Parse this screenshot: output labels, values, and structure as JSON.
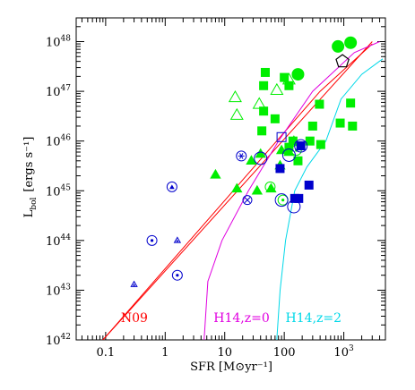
{
  "chart_data": {
    "type": "scatter",
    "xlabel": "SFR [M⊙yr⁻¹]",
    "ylabel_main": "L",
    "ylabel_sub": "bol",
    "ylabel_units": "[ergs s⁻¹]",
    "x_scale": "log",
    "y_scale": "log",
    "xlim": [
      0.032,
      5000
    ],
    "ylim": [
      1e+42,
      3e+48
    ],
    "x_ticks": [
      {
        "v": 0.1,
        "label": "0.1"
      },
      {
        "v": 1,
        "label": "1"
      },
      {
        "v": 10,
        "label": "10"
      },
      {
        "v": 100,
        "label": "100"
      },
      {
        "v": 1000,
        "label": "10",
        "sup": "3"
      }
    ],
    "y_ticks": [
      {
        "v": 1e+42,
        "base": "10",
        "sup": "42"
      },
      {
        "v": 1e+43,
        "base": "10",
        "sup": "43"
      },
      {
        "v": 1e+44,
        "base": "10",
        "sup": "44"
      },
      {
        "v": 1e+45,
        "base": "10",
        "sup": "45"
      },
      {
        "v": 1e+46,
        "base": "10",
        "sup": "46"
      },
      {
        "v": 1e+47,
        "base": "10",
        "sup": "47"
      },
      {
        "v": 1e+48,
        "base": "10",
        "sup": "48"
      }
    ],
    "lines": [
      {
        "label": "N09",
        "color": "#ff0000",
        "points": [
          [
            0.09,
            1e+42
          ],
          [
            400,
            1e+47
          ],
          [
            3000,
            9e+47
          ]
        ]
      },
      {
        "label": "",
        "color": "#ff0000",
        "points": [
          [
            0.09,
            1e+42
          ],
          [
            3000,
            1e+48
          ]
        ]
      },
      {
        "label": "H14,z=0",
        "color": "#e000e0",
        "points": [
          [
            4.5,
            1e+42
          ],
          [
            5.2,
            1.5e+43
          ],
          [
            9,
            1e+44
          ],
          [
            25,
            1e+45
          ],
          [
            80,
            1e+46
          ],
          [
            300,
            1e+47
          ],
          [
            1500,
            6e+47
          ],
          [
            4000,
            1e+48
          ]
        ]
      },
      {
        "label": "H14,z=2",
        "color": "#00d8e8",
        "points": [
          [
            75,
            1e+42
          ],
          [
            85,
            1e+43
          ],
          [
            105,
            1e+44
          ],
          [
            150,
            1e+45
          ],
          [
            240,
            3e+45
          ],
          [
            500,
            1e+46
          ],
          [
            900,
            7e+46
          ],
          [
            2000,
            2.2e+47
          ],
          [
            4500,
            4.5e+47
          ]
        ]
      }
    ],
    "annotations": [
      {
        "text": "N09",
        "color": "#ff0000",
        "x": 0.18,
        "y": 2.3e+42
      },
      {
        "text": "H14,z=0",
        "color": "#e000e0",
        "x": 6.5,
        "y": 2.3e+42
      },
      {
        "text": "H14,z=2",
        "color": "#00d8e8",
        "x": 105,
        "y": 2.3e+42
      }
    ],
    "series": [
      {
        "marker": "filled-circle",
        "color": "#00ee00",
        "points": [
          [
            170,
            2.2e+47
          ],
          [
            800,
            8e+47
          ],
          [
            1300,
            9.5e+47
          ]
        ]
      },
      {
        "marker": "filled-square",
        "color": "#00ee00",
        "points": [
          [
            48,
            2.4e+47
          ],
          [
            100,
            1.9e+47
          ],
          [
            120,
            1.3e+47
          ],
          [
            45,
            1.3e+47
          ],
          [
            45,
            4e+46
          ],
          [
            70,
            2.8e+46
          ],
          [
            390,
            5.5e+46
          ],
          [
            300,
            2e+46
          ],
          [
            270,
            1e+46
          ],
          [
            140,
            1e+46
          ],
          [
            42,
            1.6e+46
          ],
          [
            120,
            7.5e+45
          ],
          [
            170,
            4e+45
          ],
          [
            410,
            8.5e+45
          ],
          [
            870,
            2.3e+46
          ],
          [
            1300,
            5.8e+46
          ],
          [
            1400,
            2e+46
          ]
        ]
      },
      {
        "marker": "filled-triangle",
        "color": "#00ee00",
        "points": [
          [
            7,
            2.1e+45
          ],
          [
            16,
            1.1e+45
          ],
          [
            28,
            4e+45
          ],
          [
            35,
            1e+45
          ],
          [
            40,
            5.5e+45
          ],
          [
            60,
            1.1e+45
          ],
          [
            85,
            3.2e+45
          ],
          [
            90,
            6.5e+45
          ],
          [
            120,
            6e+45
          ],
          [
            145,
            1e+46
          ]
        ]
      },
      {
        "marker": "open-triangle",
        "color": "#00ee00",
        "points": [
          [
            15,
            7.5e+46
          ],
          [
            16,
            3.3e+46
          ],
          [
            38,
            5.5e+46
          ],
          [
            75,
            1.05e+47
          ],
          [
            120,
            1.7e+47
          ]
        ]
      },
      {
        "marker": "open-circle-dot",
        "color": "#00ee00",
        "points": [
          [
            58,
            1.2e+45
          ],
          [
            95,
            6.5e+44
          ],
          [
            160,
            6.5e+45
          ]
        ]
      },
      {
        "marker": "filled-square",
        "color": "#0000cc",
        "points": [
          [
            85,
            2.8e+45
          ],
          [
            150,
            7e+44
          ],
          [
            175,
            7e+44
          ],
          [
            260,
            1.3e+45
          ],
          [
            190,
            8e+45
          ]
        ]
      },
      {
        "marker": "open-square",
        "color": "#0000cc",
        "points": [
          [
            90,
            1.2e+46
          ]
        ]
      },
      {
        "marker": "open-circle",
        "color": "#0000cc",
        "points": [
          [
            40,
            4.5e+45
          ],
          [
            90,
            6.5e+44
          ],
          [
            145,
            4.8e+44
          ],
          [
            120,
            5.2e+45
          ],
          [
            190,
            8e+45
          ]
        ]
      },
      {
        "marker": "open-circle-triangle",
        "color": "#0000cc",
        "points": [
          [
            1.3,
            1.2e+45
          ]
        ]
      },
      {
        "marker": "open-circle-dot",
        "color": "#0000cc",
        "points": [
          [
            0.6,
            1e+44
          ],
          [
            1.6,
            2e+43
          ]
        ]
      },
      {
        "marker": "open-circle-star",
        "color": "#0000cc",
        "points": [
          [
            19,
            5e+45
          ]
        ]
      },
      {
        "marker": "open-circle-cross",
        "color": "#0000cc",
        "points": [
          [
            24,
            6.5e+44
          ]
        ]
      },
      {
        "marker": "small-triangle",
        "color": "#0000cc",
        "points": [
          [
            0.3,
            1.3e+43
          ],
          [
            1.6,
            1e+44
          ]
        ]
      },
      {
        "marker": "open-pentagon",
        "color": "#000000",
        "points": [
          [
            950,
            4e+47
          ]
        ]
      }
    ]
  }
}
